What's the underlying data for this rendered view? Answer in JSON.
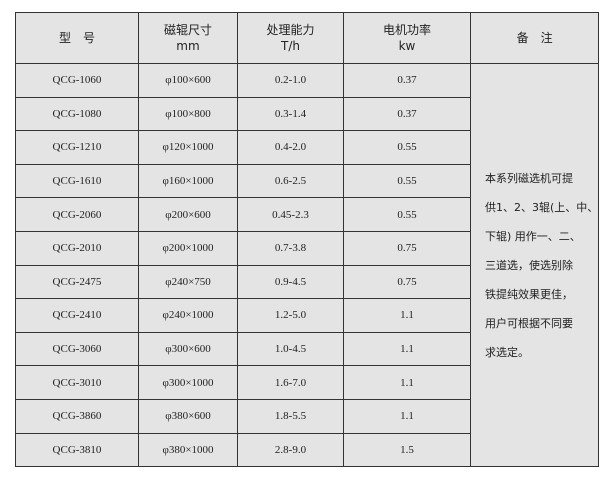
{
  "headers": [
    {
      "line1": "型　号",
      "line2": ""
    },
    {
      "line1": "磁辊尺寸",
      "line2": "mm"
    },
    {
      "line1": "处理能力",
      "line2": "T/h"
    },
    {
      "line1": "电机功率",
      "line2": "kw"
    },
    {
      "line1": "备　注",
      "line2": ""
    }
  ],
  "rows": [
    [
      "QCG-1060",
      "φ100×600",
      "0.2-1.0",
      "0.37"
    ],
    [
      "QCG-1080",
      "φ100×800",
      "0.3-1.4",
      "0.37"
    ],
    [
      "QCG-1210",
      "φ120×1000",
      "0.4-2.0",
      "0.55"
    ],
    [
      "QCG-1610",
      "φ160×1000",
      "0.6-2.5",
      "0.55"
    ],
    [
      "QCG-2060",
      "φ200×600",
      "0.45-2.3",
      "0.55"
    ],
    [
      "QCG-2010",
      "φ200×1000",
      "0.7-3.8",
      "0.75"
    ],
    [
      "QCG-2475",
      "φ240×750",
      "0.9-4.5",
      "0.75"
    ],
    [
      "QCG-2410",
      "φ240×1000",
      "1.2-5.0",
      "1.1"
    ],
    [
      "QCG-3060",
      "φ300×600",
      "1.0-4.5",
      "1.1"
    ],
    [
      "QCG-3010",
      "φ300×1000",
      "1.6-7.0",
      "1.1"
    ],
    [
      "QCG-3860",
      "φ380×600",
      "1.8-5.5",
      "1.1"
    ],
    [
      "QCG-3810",
      "φ380×1000",
      "2.8-9.0",
      "1.5"
    ]
  ],
  "remark_lines": [
    "本系列磁选机可提",
    "供1、2、3辊(上、中、",
    "下辊) 用作一、二、",
    "三道选，使选别除",
    "铁提纯效果更佳，",
    "用户可根据不同要",
    "求选定。"
  ]
}
